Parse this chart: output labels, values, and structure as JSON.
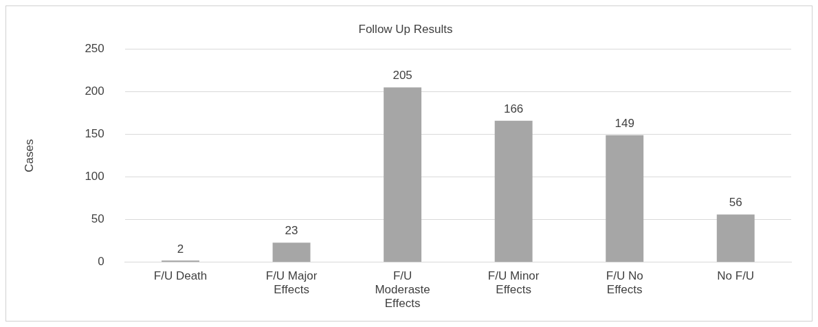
{
  "chart_data": {
    "type": "bar",
    "title": "Follow Up Results",
    "ylabel": "Cases",
    "categories": [
      "F/U Death",
      "F/U Major Effects",
      "F/U Moderaste Effects",
      "F/U Minor Effects",
      "F/U No Effects",
      "No F/U"
    ],
    "values": [
      2,
      23,
      205,
      166,
      149,
      56
    ],
    "color": "#a6a6a6",
    "ylim": [
      0,
      250
    ],
    "yticks": [
      0,
      50,
      100,
      150,
      200,
      250
    ],
    "grid": "y",
    "data_labels": true,
    "legend": false
  }
}
